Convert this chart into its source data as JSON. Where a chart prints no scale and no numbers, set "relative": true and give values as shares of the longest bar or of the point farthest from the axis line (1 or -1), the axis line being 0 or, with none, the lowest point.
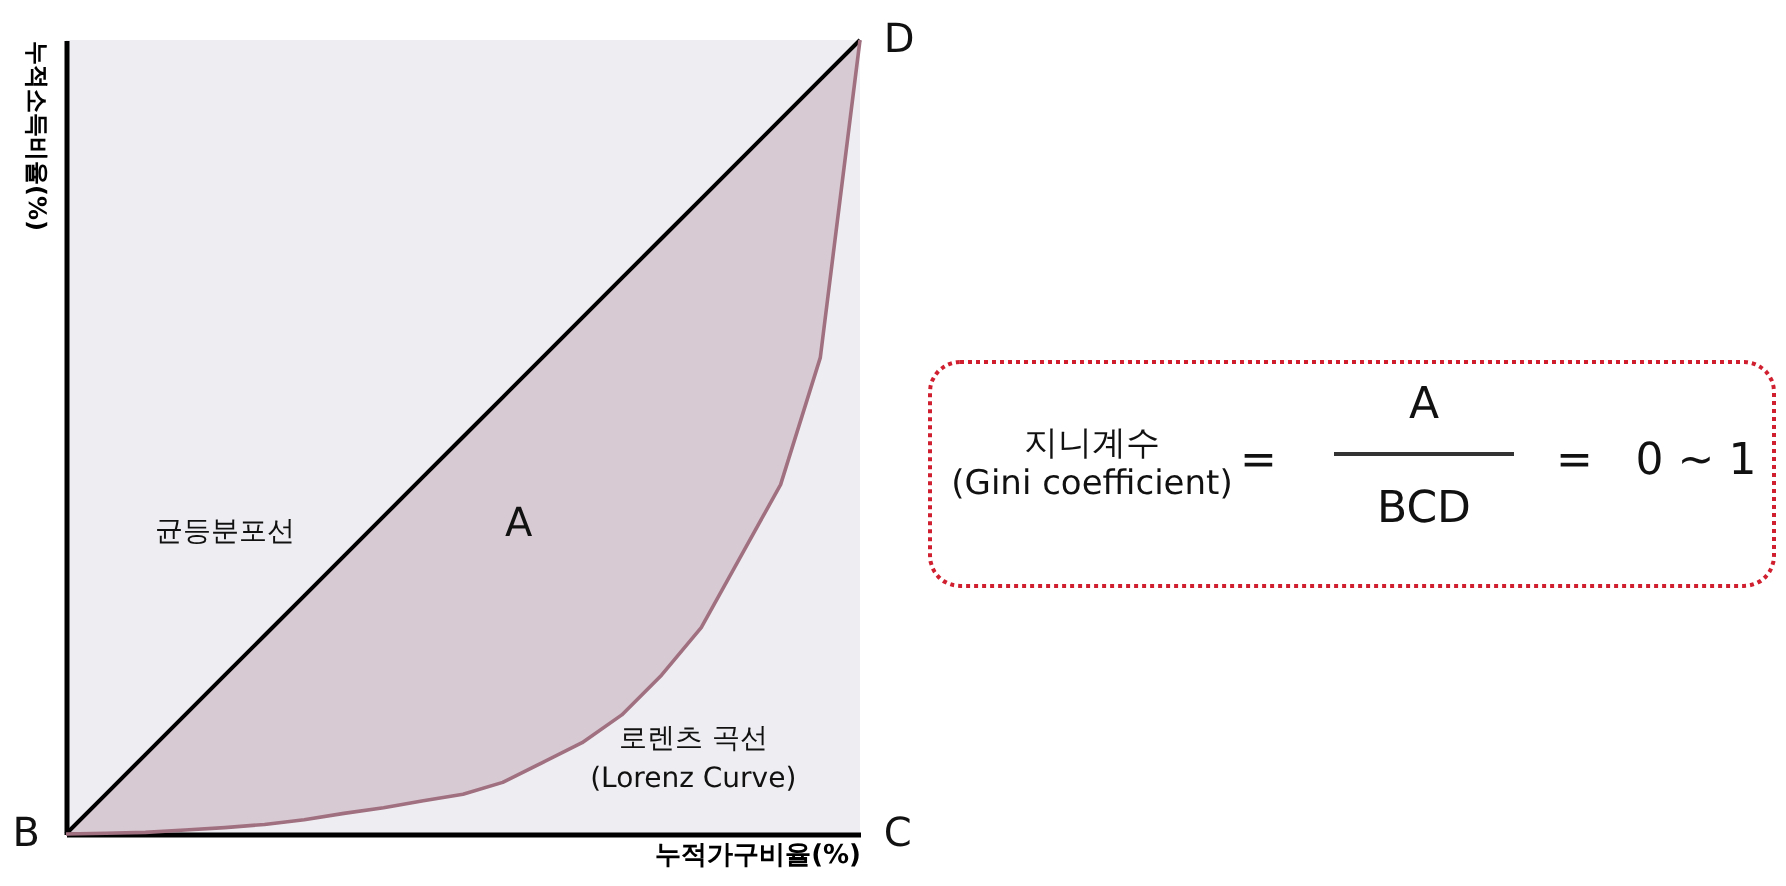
{
  "chart_data": {
    "type": "line",
    "relative": true,
    "grid": false,
    "xlabel": "누적가구비율(%)",
    "ylabel": "누적소득비율(%)",
    "categories": [
      null,
      null,
      null,
      null,
      null,
      null,
      null,
      null,
      null,
      null,
      null,
      null,
      null,
      null,
      null,
      null,
      null,
      null,
      null,
      null,
      null
    ],
    "series": [
      {
        "name": "균등분포선",
        "color": "#000000",
        "values": [
          0,
          0.05,
          0.1,
          0.15,
          0.2,
          0.25,
          0.3,
          0.35,
          0.4,
          0.45,
          0.5,
          0.55,
          0.6,
          0.65,
          0.7,
          0.75,
          0.8,
          0.85,
          0.9,
          0.95,
          1
        ]
      },
      {
        "name": "로렌츠 곡선\n(Lorenz Curve)",
        "color": "#a07080",
        "values": [
          0,
          0.001,
          0.002,
          0.005,
          0.008,
          0.012,
          0.018,
          0.026,
          0.033,
          0.042,
          0.05,
          0.065,
          0.09,
          0.115,
          0.15,
          0.2,
          0.26,
          0.35,
          0.44,
          0.6,
          1
        ]
      }
    ],
    "annotations": [
      "A",
      "B",
      "C",
      "D",
      "지니계수",
      "(Gini coefficient)",
      "=",
      "A",
      "BCD",
      "=",
      "0 ~ 1"
    ]
  }
}
